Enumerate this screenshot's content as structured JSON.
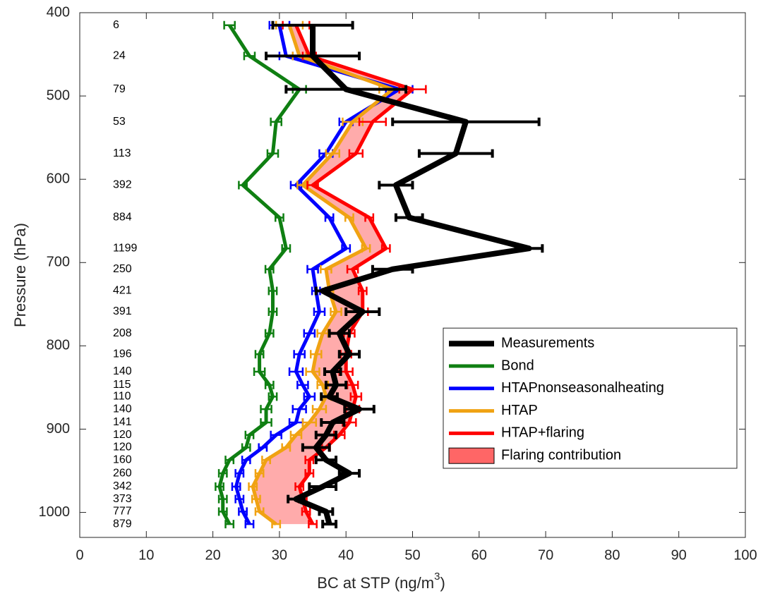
{
  "chart_data": {
    "type": "profile",
    "x_label": "BC at STP (ng/m",
    "x_label_sup": "3",
    "x_label_end": ")",
    "y_label": "Pressure (hPa)",
    "y": [
      415,
      452,
      492,
      531,
      569,
      607,
      646,
      683,
      708,
      734,
      759,
      785,
      810,
      831,
      847,
      861,
      876,
      892,
      907,
      922,
      937,
      953,
      969,
      984,
      999,
      1014
    ],
    "sample_counts": [
      6,
      24,
      79,
      53,
      113,
      392,
      884,
      1199,
      250,
      421,
      391,
      208,
      196,
      140,
      115,
      110,
      140,
      141,
      120,
      120,
      160,
      260,
      342,
      373,
      777,
      879
    ],
    "series": [
      {
        "name": "Measurements",
        "color": "#000000",
        "width": 8,
        "values": [
          35,
          35,
          40,
          58,
          56.5,
          47.5,
          49.5,
          67.5,
          47,
          36.5,
          42.5,
          39,
          40.5,
          38,
          38.5,
          37.5,
          42,
          38,
          37,
          35.5,
          37,
          40.5,
          36.5,
          32.5,
          37,
          37.5
        ],
        "errors": [
          6,
          7,
          9,
          11,
          5.5,
          2.5,
          2,
          2,
          3,
          1,
          2.5,
          1.5,
          1.5,
          1.2,
          1.5,
          1.2,
          2.2,
          1.7,
          1.5,
          2,
          1.5,
          1.5,
          2,
          1.2,
          1,
          1
        ]
      },
      {
        "name": "Bond",
        "color": "#0f7f12",
        "width": 5,
        "values": [
          22.5,
          25.5,
          33,
          29.5,
          29,
          24.5,
          30,
          31,
          28.5,
          29,
          29,
          28.5,
          27,
          27,
          28.5,
          29,
          28,
          28,
          25.5,
          25,
          22.5,
          21.5,
          21,
          21.5,
          21.5,
          22.5
        ],
        "errors": [
          0.8,
          0.8,
          1,
          0.8,
          0.8,
          0.6,
          0.6,
          0.6,
          0.6,
          0.6,
          0.6,
          0.6,
          0.6,
          0.8,
          0.6,
          0.6,
          0.8,
          0.8,
          0.6,
          0.6,
          0.6,
          0.6,
          0.6,
          0.6,
          0.6,
          0.6
        ]
      },
      {
        "name": "HTAPnonseasonalheating",
        "color": "#0000ff",
        "width": 5,
        "values": [
          30,
          31,
          48,
          40,
          37,
          32.5,
          37.5,
          40,
          35,
          35.5,
          36,
          34.5,
          33,
          32.5,
          33.5,
          34.5,
          33,
          32.5,
          29.5,
          27.5,
          25,
          24,
          23.5,
          24,
          24.5,
          25.5
        ],
        "errors": [
          1.5,
          1,
          2,
          1,
          1,
          0.8,
          0.6,
          0.6,
          0.8,
          0.6,
          0.8,
          0.8,
          0.8,
          1,
          0.8,
          0.8,
          1,
          1,
          0.8,
          0.6,
          0.6,
          0.6,
          0.6,
          0.6,
          0.6,
          0.6
        ]
      },
      {
        "name": "HTAP",
        "color": "#f0a212",
        "width": 5,
        "values": [
          31.5,
          33,
          47,
          41,
          38,
          33.5,
          40.5,
          43,
          37,
          37.5,
          38.5,
          36.5,
          35.5,
          35,
          36.5,
          37,
          36,
          34.5,
          32.5,
          31,
          28,
          27,
          26,
          26.5,
          27,
          29.5
        ],
        "errors": [
          2,
          1,
          2,
          1.5,
          1,
          0.8,
          0.6,
          0.6,
          0.8,
          0.6,
          0.8,
          0.8,
          0.8,
          1,
          0.8,
          0.8,
          1,
          1,
          0.8,
          0.6,
          0.6,
          0.6,
          0.6,
          0.6,
          0.6,
          0.6
        ]
      },
      {
        "name": "HTAP+flaring",
        "color": "#ff0000",
        "width": 5,
        "values": [
          32.5,
          34.5,
          50,
          44,
          41.5,
          35,
          43.5,
          46,
          41,
          42.5,
          42.5,
          40.5,
          40,
          40,
          41,
          41.5,
          41,
          40.5,
          39,
          37,
          34.5,
          34.5,
          33,
          33.5,
          34,
          35
        ],
        "errors": [
          2,
          1,
          2,
          2,
          1,
          0.8,
          0.6,
          0.6,
          0.8,
          0.6,
          0.8,
          0.8,
          0.8,
          1,
          0.8,
          0.8,
          1,
          1,
          0.8,
          0.6,
          0.6,
          0.6,
          0.6,
          0.6,
          0.6,
          0.6
        ]
      }
    ],
    "fill": {
      "name": "Flaring contribution",
      "color": "#ff6666",
      "opacity": 0.55,
      "between": [
        3,
        4
      ]
    },
    "draw_order": [
      1,
      2,
      3,
      4,
      0
    ],
    "xlim": [
      0,
      100
    ],
    "xticks": [
      0,
      10,
      20,
      30,
      40,
      50,
      60,
      70,
      80,
      90,
      100
    ],
    "ylim": [
      400,
      1030
    ],
    "yticks": [
      400,
      500,
      600,
      700,
      800,
      900,
      1000
    ],
    "y_reversed": true,
    "legend": "lower right"
  }
}
